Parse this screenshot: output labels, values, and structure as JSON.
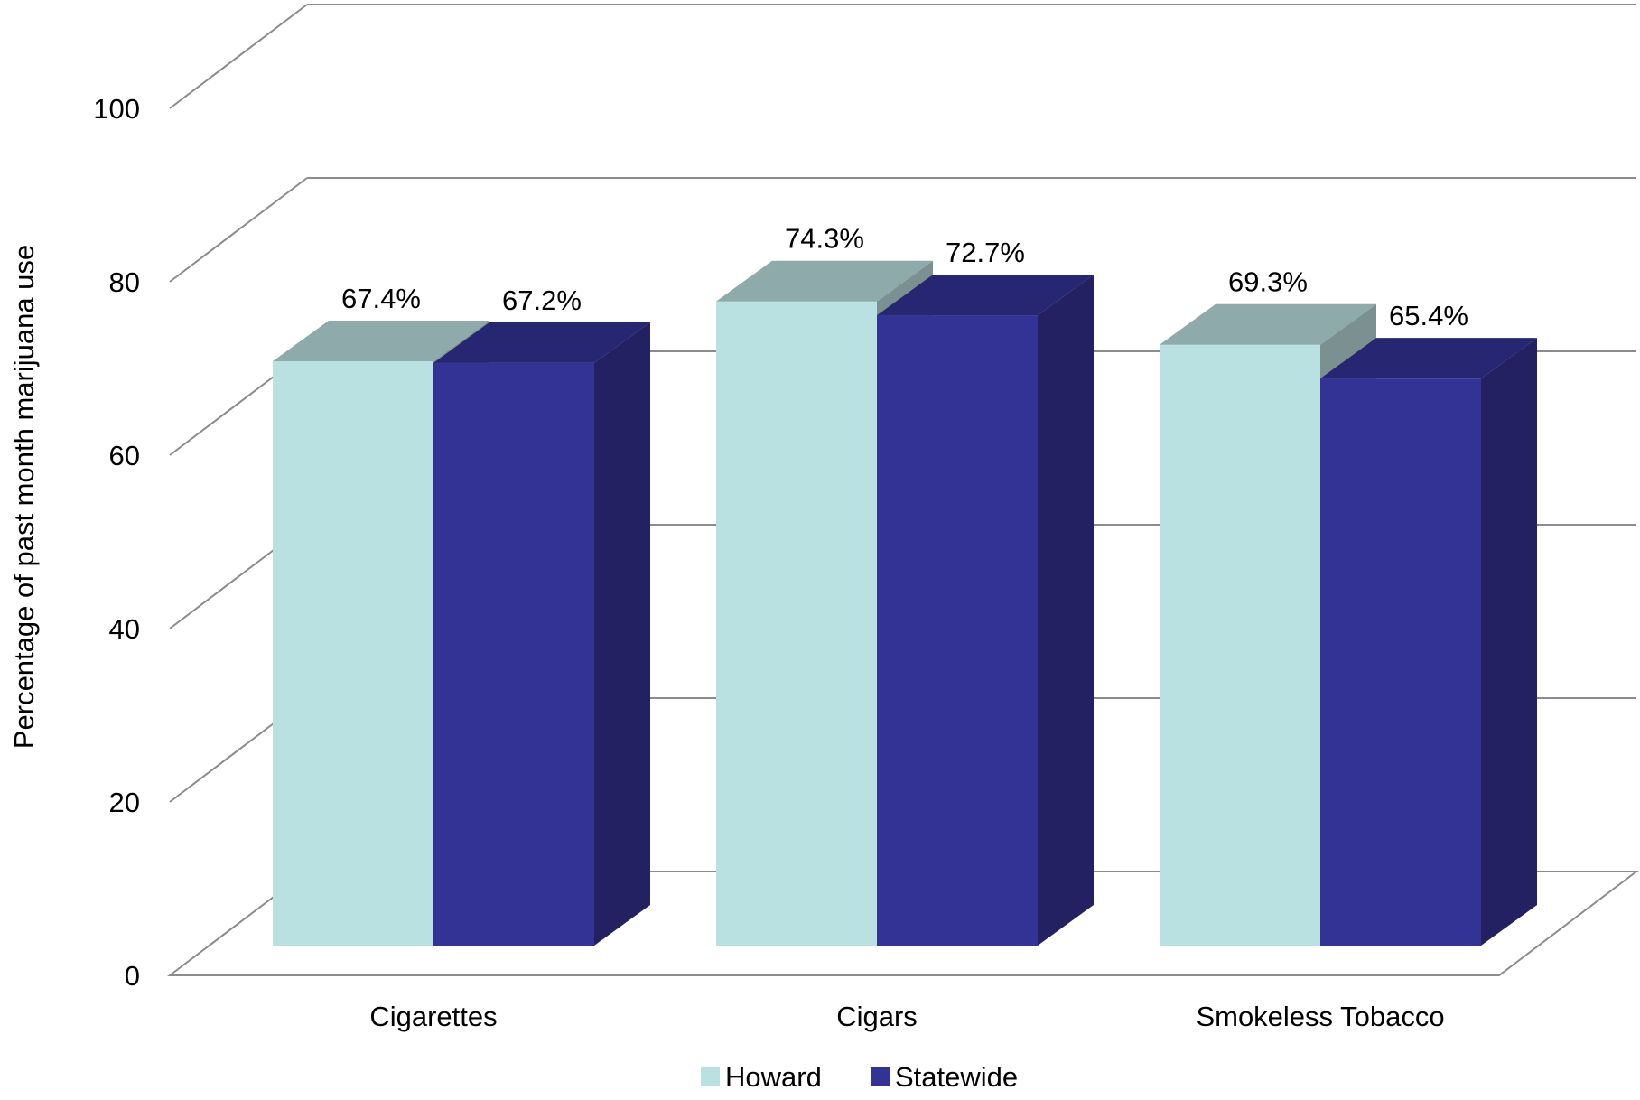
{
  "chart_data": {
    "type": "bar",
    "title": "",
    "xlabel": "",
    "ylabel": "Percentage of past month marijuana use",
    "ylim": [
      0,
      100
    ],
    "yticks": [
      0,
      20,
      40,
      60,
      80,
      100
    ],
    "grid": true,
    "legend_position": "bottom",
    "categories": [
      "Cigarettes",
      "Cigars",
      "Smokeless Tobacco"
    ],
    "series": [
      {
        "name": "Howard",
        "values": [
          67.4,
          74.3,
          69.3
        ],
        "labels": [
          "67.4%",
          "74.3%",
          "69.3%"
        ],
        "color": "#BAE1E1",
        "top_color": "#8FAAAA",
        "side_color": "#7B9090"
      },
      {
        "name": "Statewide",
        "values": [
          67.2,
          72.7,
          65.4
        ],
        "labels": [
          "67.2%",
          "72.7%",
          "65.4%"
        ],
        "color": "#333396",
        "top_color": "#262672",
        "side_color": "#232162"
      }
    ]
  }
}
